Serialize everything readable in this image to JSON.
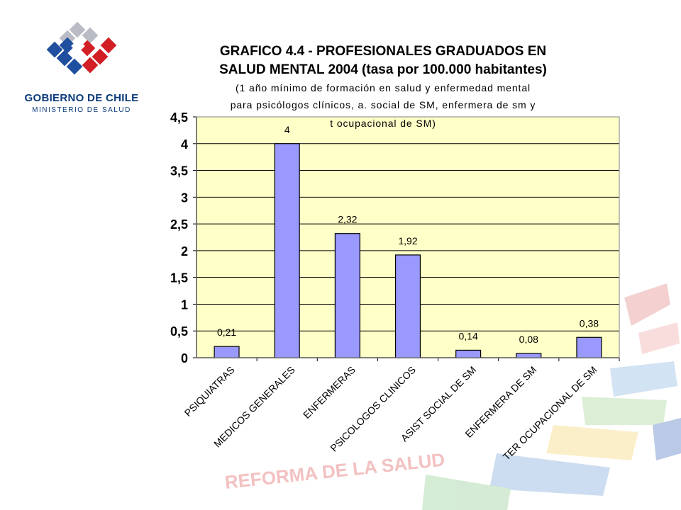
{
  "logo": {
    "line1": "GOBIERNO DE CHILE",
    "line2": "MINISTERIO DE SALUD",
    "colors": {
      "blue": "#1f4f9e",
      "red": "#d21f26",
      "gray": "#b9bcc4"
    }
  },
  "watermark": {
    "text": "REFORMA DE LA SALUD"
  },
  "title": {
    "line1": "GRAFICO 4.4 - PROFESIONALES GRADUADOS EN",
    "line2": "SALUD MENTAL 2004 (tasa por 100.000 habitantes)",
    "line3": "(1 año mínimo de formación en salud y enfermedad mental",
    "line4": "para psicólogos clínicos, a. social de SM, enfermera de sm y",
    "line5": "t ocupacional de SM)"
  },
  "chart_data": {
    "type": "bar",
    "categories": [
      "PSIQUIATRAS",
      "MEDICOS GENERALES",
      "ENFERMERAS",
      "PSICOLOGOS CLINICOS",
      "ASIST SOCIAL DE SM",
      "ENFERMERA DE SM",
      "TER OCUPACIONAL DE SM"
    ],
    "values": [
      0.21,
      4,
      2.32,
      1.92,
      0.14,
      0.08,
      0.38
    ],
    "data_labels": [
      "0,21",
      "4",
      "2,32",
      "1,92",
      "0,14",
      "0,08",
      "0,38"
    ],
    "y_ticks": [
      "0",
      "0,5",
      "1",
      "1,5",
      "2",
      "2,5",
      "3",
      "3,5",
      "4",
      "4,5"
    ],
    "ylim": [
      0,
      4.5
    ],
    "grid": true,
    "colors": {
      "bar": "#9999ff",
      "plot_bg": "#ffffc8",
      "grid": "#000000"
    }
  }
}
